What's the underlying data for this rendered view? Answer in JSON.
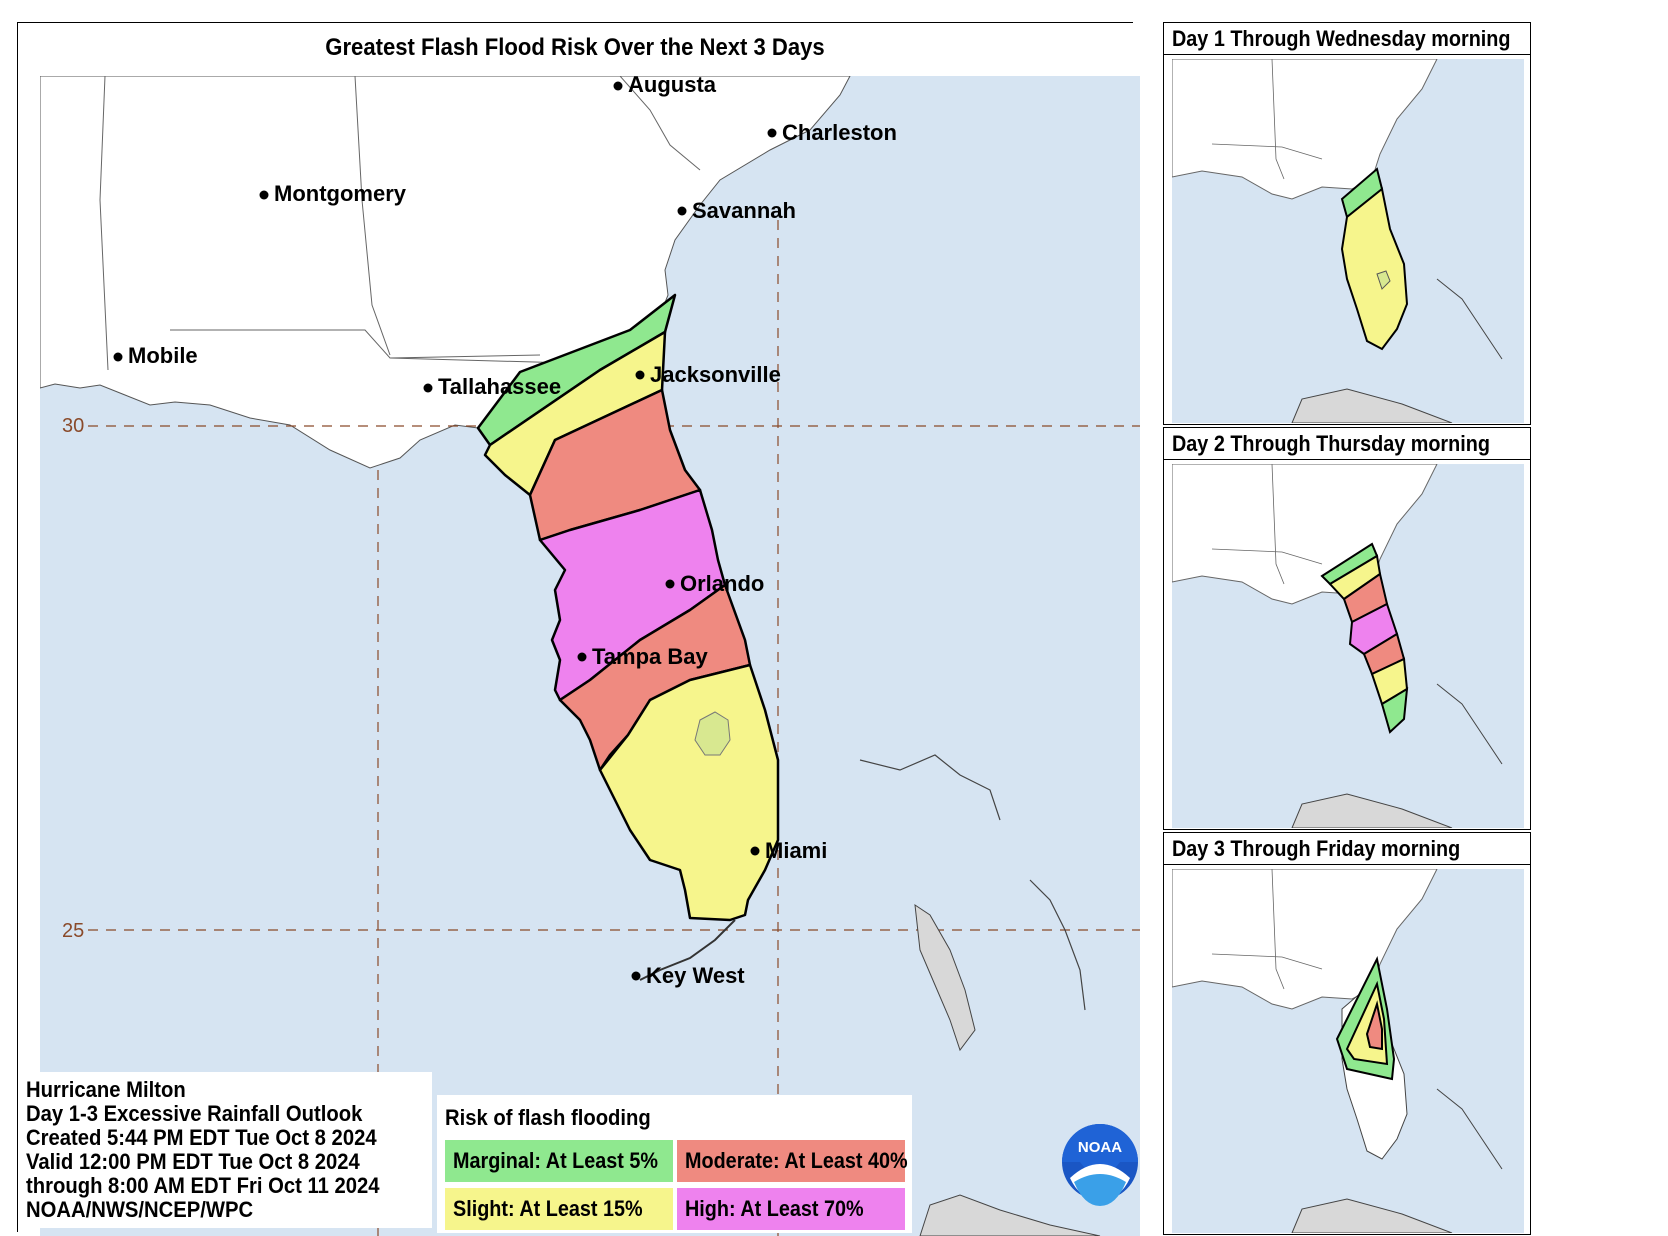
{
  "title": "Greatest Flash Flood Risk Over the Next 3 Days",
  "cities": [
    "Augusta",
    "Charleston",
    "Montgomery",
    "Savannah",
    "Mobile",
    "Tallahassee",
    "Jacksonville",
    "Orlando",
    "Tampa Bay",
    "Miami",
    "Key West"
  ],
  "latitude_labels": [
    "30",
    "25"
  ],
  "info": {
    "line1": "Hurricane Milton",
    "line2": "Day 1-3 Excessive Rainfall Outlook",
    "line3": "Created 5:44 PM EDT Tue Oct 8 2024",
    "line4": "Valid 12:00 PM EDT Tue Oct 8 2024",
    "line5": "through 8:00 AM EDT Fri Oct 11 2024",
    "line6": "NOAA/NWS/NCEP/WPC"
  },
  "legend": {
    "title": "Risk of flash flooding",
    "items": [
      {
        "label": "Marginal: At Least 5%",
        "color": "#8fe88f"
      },
      {
        "label": "Moderate: At Least 40%",
        "color": "#ef8a80"
      },
      {
        "label": "Slight: At Least 15%",
        "color": "#f6f58c"
      },
      {
        "label": "High: At Least 70%",
        "color": "#ee82ee"
      }
    ]
  },
  "logo_text": "NOAA",
  "panels": [
    {
      "title": "Day 1 Through Wednesday morning"
    },
    {
      "title": "Day 2 Through Thursday morning"
    },
    {
      "title": "Day 3 Through Friday morning"
    }
  ],
  "colors": {
    "water": "#d6e4f2",
    "land": "#ffffff",
    "marginal": "#8fe88f",
    "slight": "#f6f58c",
    "moderate": "#ef8a80",
    "high": "#ee82ee",
    "island": "#d8d8d8"
  }
}
